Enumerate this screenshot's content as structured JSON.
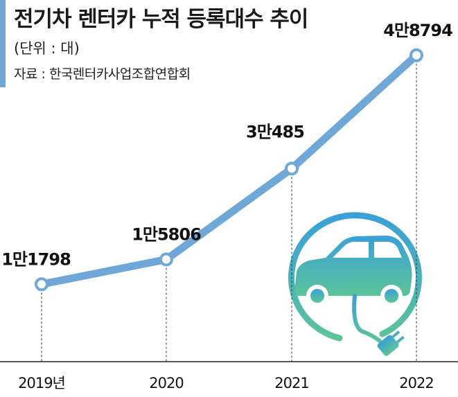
{
  "header": {
    "title": "전기차 렌터카 누적 등록대수 추이",
    "unit": "(단위 : 대)",
    "source": "자료 : 한국렌터카사업조합연합회"
  },
  "colors": {
    "accent": "#6fa8d6",
    "line": "#6fa8d6",
    "axis": "#222222",
    "illustration_start": "#3aa0d8",
    "illustration_end": "#5cc39a"
  },
  "icons": {
    "illustration": "ev-charging-car-icon"
  },
  "chart_data": {
    "type": "line",
    "title": "전기차 렌터카 누적 등록대수 추이",
    "categories": [
      "2019년",
      "2020",
      "2021",
      "2022"
    ],
    "values": [
      11798,
      15806,
      30485,
      48794
    ],
    "value_labels": [
      "1만1798",
      "1만5806",
      "3만485",
      "4만8794"
    ],
    "ylim": [
      5000,
      50000
    ],
    "grid": false,
    "legend": "none"
  }
}
